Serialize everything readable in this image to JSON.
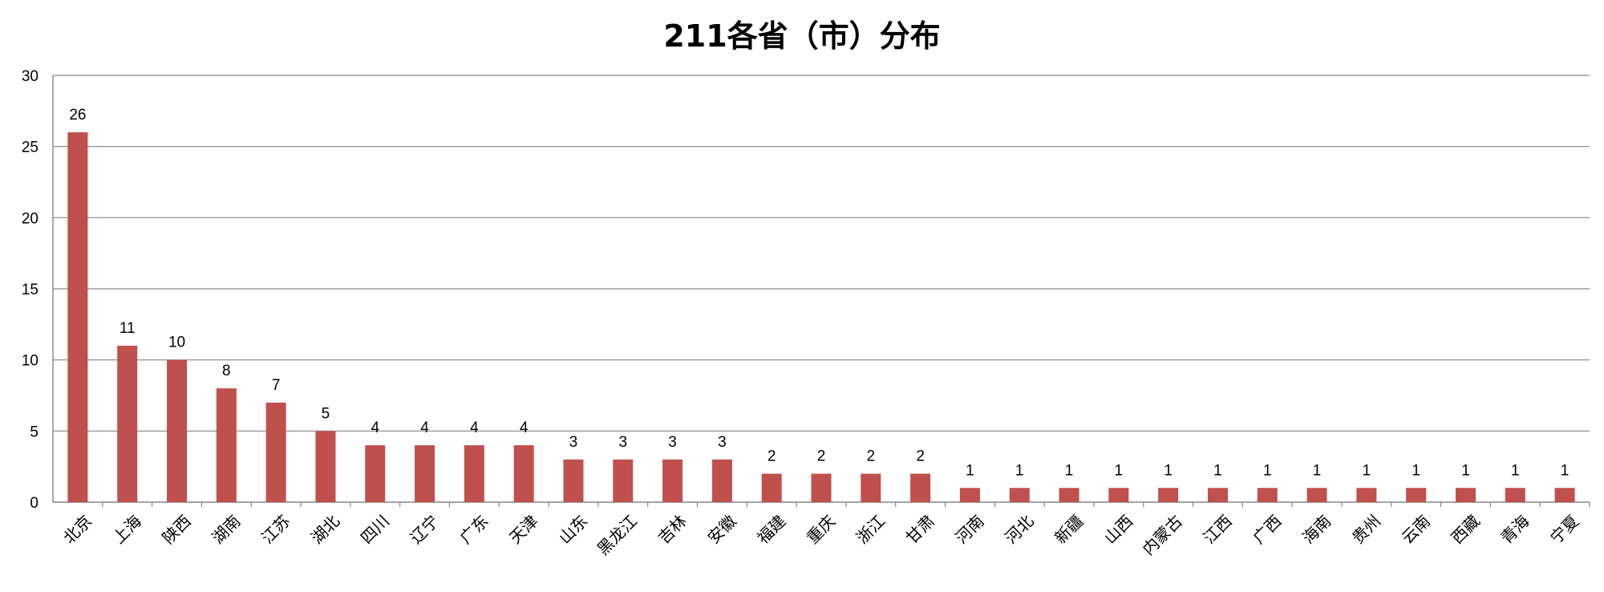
{
  "chart_data": {
    "type": "bar",
    "title": "211各省（市）分布",
    "xlabel": "",
    "ylabel": "",
    "ylim": [
      0,
      30
    ],
    "yticks": [
      0,
      5,
      10,
      15,
      20,
      25,
      30
    ],
    "grid": true,
    "legend": "none",
    "bar_color": "#c0504d",
    "categories": [
      "北京",
      "上海",
      "陕西",
      "湖南",
      "江苏",
      "湖北",
      "四川",
      "辽宁",
      "广东",
      "天津",
      "山东",
      "黑龙江",
      "吉林",
      "安徽",
      "福建",
      "重庆",
      "浙江",
      "甘肃",
      "河南",
      "河北",
      "新疆",
      "山西",
      "内蒙古",
      "江西",
      "广西",
      "海南",
      "贵州",
      "云南",
      "西藏",
      "青海",
      "宁夏"
    ],
    "values": [
      26,
      11,
      10,
      8,
      7,
      5,
      4,
      4,
      4,
      4,
      3,
      3,
      3,
      3,
      2,
      2,
      2,
      2,
      1,
      1,
      1,
      1,
      1,
      1,
      1,
      1,
      1,
      1,
      1,
      1,
      1
    ]
  }
}
